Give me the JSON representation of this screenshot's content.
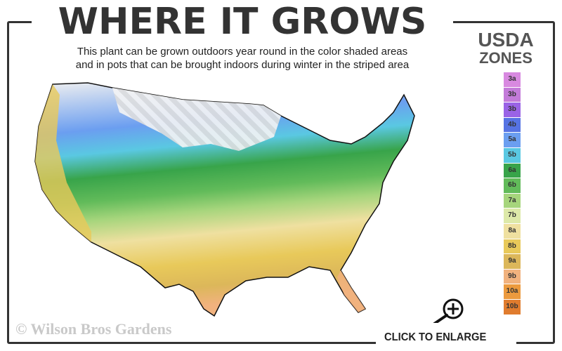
{
  "header": {
    "title": "WHERE IT GROWS",
    "subtitle_line1": "This plant can be grown outdoors year round in the color shaded areas",
    "subtitle_line2": "and in pots that can be brought indoors during winter in the striped area"
  },
  "legend": {
    "title_line1": "USDA",
    "title_line2": "ZONES",
    "zones": [
      {
        "label": "3a",
        "color": "#d889e0"
      },
      {
        "label": "3b",
        "color": "#c37bd9"
      },
      {
        "label": "3b",
        "color": "#9a63e6"
      },
      {
        "label": "4b",
        "color": "#5673e3"
      },
      {
        "label": "5a",
        "color": "#6b9ef0"
      },
      {
        "label": "5b",
        "color": "#5ac8e2"
      },
      {
        "label": "6a",
        "color": "#38a44a"
      },
      {
        "label": "6b",
        "color": "#62bb5a"
      },
      {
        "label": "7a",
        "color": "#a6d57c"
      },
      {
        "label": "7b",
        "color": "#dde9a9"
      },
      {
        "label": "8a",
        "color": "#efe0a0"
      },
      {
        "label": "8b",
        "color": "#e8c95a"
      },
      {
        "label": "9a",
        "color": "#dcb75a"
      },
      {
        "label": "9b",
        "color": "#f1b27e"
      },
      {
        "label": "10a",
        "color": "#ec9a3e"
      },
      {
        "label": "10b",
        "color": "#e07c2e"
      }
    ]
  },
  "credit": "© Wilson Bros Gardens",
  "enlarge_label": "CLICK TO ENLARGE"
}
